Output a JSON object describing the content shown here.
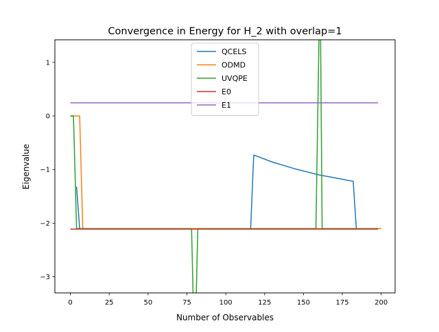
{
  "chart_data": {
    "type": "line",
    "title": "Convergence in Energy for H_2 with overlap=1",
    "xlabel": "Number of Observables",
    "ylabel": "Eigenvalue",
    "xlim": [
      -9.95,
      208.95
    ],
    "ylim": [
      -3.3,
      1.42
    ],
    "xticks": [
      0,
      25,
      50,
      75,
      100,
      125,
      150,
      175,
      200
    ],
    "yticks": [
      -3,
      -2,
      -1,
      0,
      1
    ],
    "ytick_labels": [
      "−3",
      "−2",
      "−1",
      "0",
      "1"
    ],
    "grid": false,
    "legend_position": "top-center",
    "series": [
      {
        "name": "QCELS",
        "color": "#1f77b4",
        "points": [
          [
            4,
            -1.32
          ],
          [
            6,
            -2.1
          ],
          [
            116,
            -2.1
          ],
          [
            118,
            -0.73
          ],
          [
            130,
            -0.86
          ],
          [
            145,
            -0.99
          ],
          [
            160,
            -1.1
          ],
          [
            175,
            -1.18
          ],
          [
            182,
            -1.22
          ],
          [
            184,
            -2.1
          ],
          [
            198,
            -2.1
          ]
        ]
      },
      {
        "name": "ODMD",
        "color": "#ff7f0e",
        "points": [
          [
            0,
            0.0
          ],
          [
            6,
            0.0
          ],
          [
            8,
            -2.1
          ],
          [
            200,
            -2.1
          ]
        ]
      },
      {
        "name": "UVQPE",
        "color": "#2ca02c",
        "points": [
          [
            0,
            0.0
          ],
          [
            2,
            0.0
          ],
          [
            4,
            -2.1
          ],
          [
            78,
            -2.1
          ],
          [
            79,
            -3.35
          ],
          [
            81,
            -3.35
          ],
          [
            82,
            -2.1
          ],
          [
            158,
            -2.1
          ],
          [
            160,
            1.5
          ],
          [
            161,
            1.5
          ],
          [
            162,
            -2.1
          ],
          [
            198,
            -2.1
          ]
        ]
      },
      {
        "name": "E0",
        "color": "#d62728",
        "points": [
          [
            0,
            -2.11
          ],
          [
            198,
            -2.11
          ]
        ]
      },
      {
        "name": "E1",
        "color": "#9467bd",
        "points": [
          [
            0,
            0.245
          ],
          [
            198,
            0.245
          ]
        ]
      }
    ]
  }
}
